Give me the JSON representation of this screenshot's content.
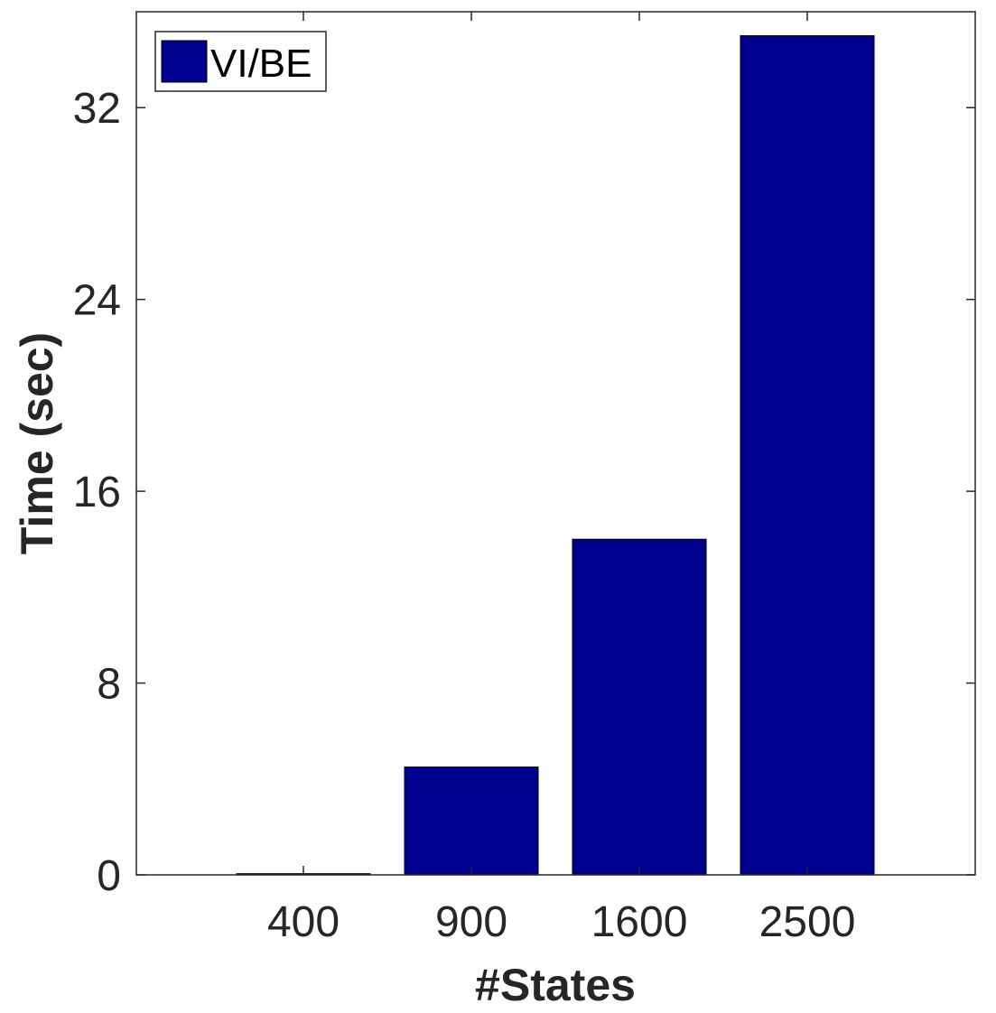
{
  "chart_data": {
    "type": "bar",
    "categories": [
      "400",
      "900",
      "1600",
      "2500"
    ],
    "series": [
      {
        "name": "VI/BE",
        "values": [
          0.05,
          4.5,
          14.0,
          35.0
        ]
      }
    ],
    "xlabel": "#States",
    "ylabel": "Time (sec)",
    "ylim": [
      0,
      36
    ],
    "yticks": [
      0,
      8,
      16,
      24,
      32
    ],
    "ytick_labels": [
      "0",
      "8",
      "16",
      "24",
      "32"
    ],
    "grid": false,
    "legend": {
      "entries": [
        "VI/BE"
      ],
      "placement": "top-left"
    },
    "colors": {
      "bar": "#00008F",
      "axis": "#262626",
      "edge": "#000000"
    }
  }
}
